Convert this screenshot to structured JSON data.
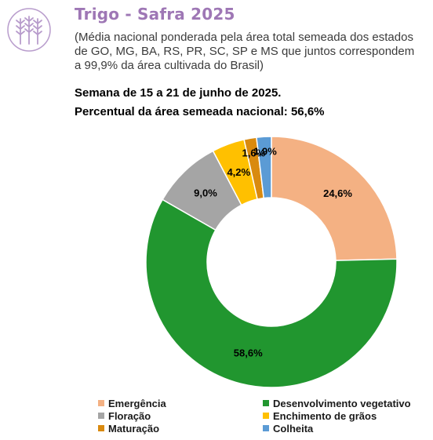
{
  "header": {
    "title": "Trigo - Safra 2025",
    "subtitle": "(Média nacional ponderada pela área total semeada dos estados de GO, MG, BA, RS, PR, SC, SP e MS que juntos correspondem a 99,9% da área cultivada do Brasil)",
    "week": "Semana de 15 a 21 de junho de 2025.",
    "percent_sown": "Percentual da área semeada nacional: 56,6%"
  },
  "logo": {
    "icon": "wheat-icon",
    "color": "#b89ccc"
  },
  "chart_data": {
    "type": "pie",
    "donut": true,
    "title": "",
    "categories": [
      "Emergência",
      "Desenvolvimento vegetativo",
      "Floração",
      "Enchimento de grãos",
      "Maturação",
      "Colheita"
    ],
    "values": [
      24.6,
      58.6,
      9.0,
      4.2,
      1.6,
      1.9
    ],
    "labels": [
      "24,6%",
      "58,6%",
      "9,0%",
      "4,2%",
      "1,6%",
      "1,9%"
    ],
    "colors": [
      "#f4b183",
      "#21962f",
      "#a5a5a5",
      "#ffc000",
      "#d98a0f",
      "#5b9bd5"
    ],
    "legend_position": "bottom"
  }
}
